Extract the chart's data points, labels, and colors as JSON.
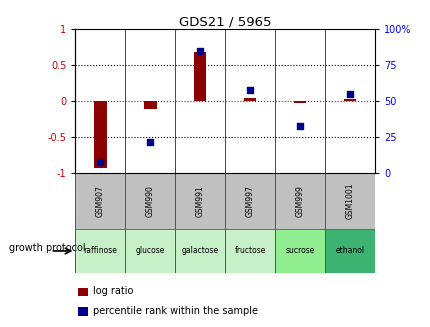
{
  "title": "GDS21 / 5965",
  "samples": [
    "GSM907",
    "GSM990",
    "GSM991",
    "GSM997",
    "GSM999",
    "GSM1001"
  ],
  "protocols": [
    "raffinose",
    "glucose",
    "galactose",
    "fructose",
    "sucrose",
    "ethanol"
  ],
  "protocol_colors": [
    "#C8F0C8",
    "#C8F0C8",
    "#C8F0C8",
    "#C8F0C8",
    "#90EE90",
    "#3CB371"
  ],
  "log_ratio": [
    -0.93,
    -0.1,
    0.68,
    0.05,
    -0.02,
    0.03
  ],
  "percentile_rank": [
    8,
    22,
    85,
    58,
    33,
    55
  ],
  "bar_color": "#8B0000",
  "dot_color": "#00008B",
  "bg_color_samples": "#C0C0C0",
  "ylim_left": [
    -1,
    1
  ],
  "ylim_right": [
    0,
    100
  ],
  "yticks_left": [
    -1,
    -0.5,
    0,
    0.5,
    1
  ],
  "yticks_right": [
    0,
    25,
    50,
    75,
    100
  ],
  "legend_log_ratio": "log ratio",
  "legend_percentile": "percentile rank within the sample",
  "growth_protocol_label": "growth protocol"
}
